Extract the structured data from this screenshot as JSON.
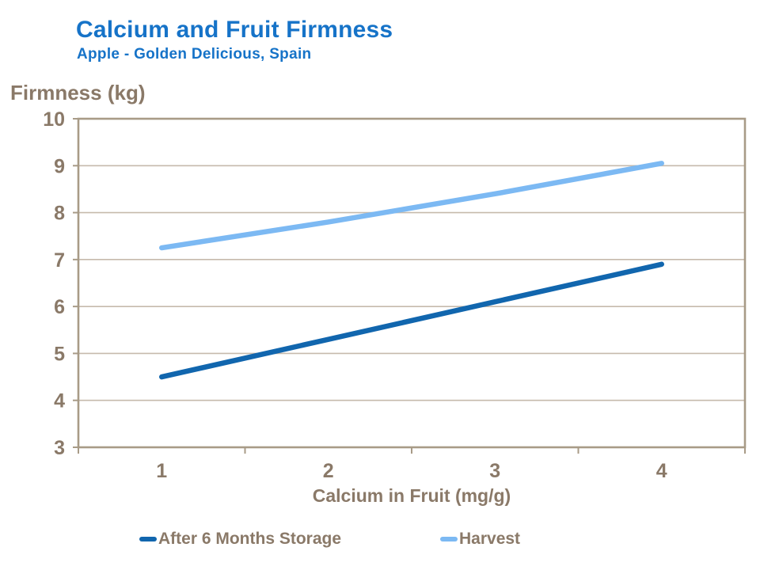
{
  "header": {
    "title": "Calcium and Fruit Firmness",
    "subtitle": "Apple - Golden Delicious, Spain"
  },
  "chart_data": {
    "type": "line",
    "title": "Calcium and Fruit Firmness",
    "subtitle": "Apple - Golden Delicious, Spain",
    "xlabel": "Calcium in Fruit (mg/g)",
    "ylabel": "Firmness (kg)",
    "x": [
      1,
      2,
      3,
      4
    ],
    "xtick_labels": [
      "1",
      "2",
      "3",
      "4"
    ],
    "series": [
      {
        "name": "After 6 Months Storage",
        "values": [
          4.5,
          5.3,
          6.1,
          6.9
        ],
        "color": "#1166AE"
      },
      {
        "name": "Harvest",
        "values": [
          7.25,
          7.8,
          8.4,
          9.05
        ],
        "color": "#7CB9F3"
      }
    ],
    "ylim": [
      3,
      10
    ],
    "yticks": [
      3,
      4,
      5,
      6,
      7,
      8,
      9,
      10
    ],
    "grid": true,
    "legend_position": "bottom"
  },
  "colors": {
    "title_blue": "#1673C8",
    "text_brown": "#8A7968",
    "axis_line": "#A89B87",
    "gridline": "#C6BAAC",
    "storage_line": "#1166AE",
    "harvest_line": "#7CB9F3"
  }
}
